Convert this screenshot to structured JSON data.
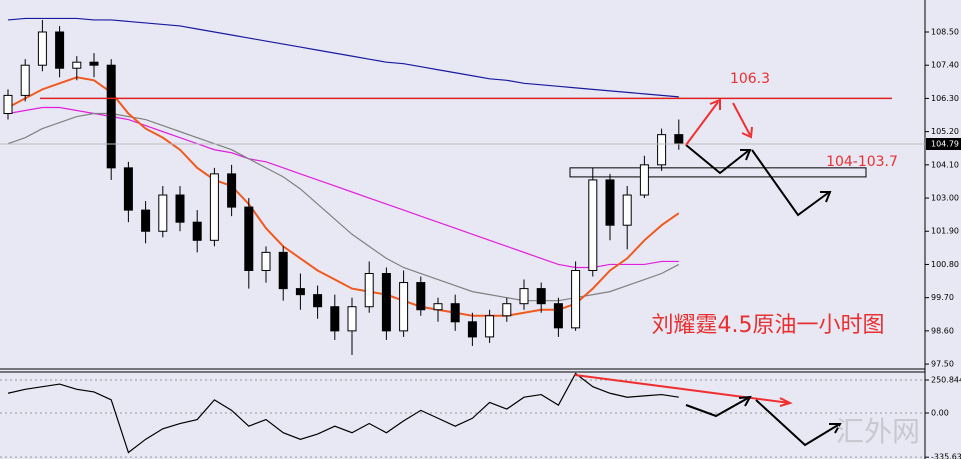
{
  "chart_data": [
    {
      "type": "candlestick",
      "title": "刘耀霆4.5原油一小时图",
      "watermark": "汇外网",
      "categories": [
        null,
        null,
        null,
        null,
        null,
        null,
        null,
        null,
        null,
        null,
        null,
        null,
        null,
        null,
        null,
        null,
        null,
        null,
        null,
        null,
        null,
        null,
        null,
        null,
        null,
        null,
        null,
        null,
        null,
        null,
        null,
        null,
        null,
        null,
        null,
        null,
        null,
        null,
        null,
        null
      ],
      "open": [
        105.8,
        106.4,
        107.4,
        108.5,
        107.3,
        107.5,
        107.4,
        104.0,
        102.6,
        101.9,
        103.1,
        102.2,
        101.6,
        103.8,
        102.7,
        100.6,
        101.2,
        100.0,
        99.8,
        99.4,
        98.6,
        99.4,
        100.5,
        98.6,
        100.2,
        99.3,
        99.5,
        98.9,
        98.4,
        99.1,
        99.5,
        100.0,
        99.5,
        98.7,
        100.6,
        103.6,
        102.1,
        103.1,
        104.1,
        105.1
      ],
      "high": [
        106.6,
        107.6,
        108.9,
        108.7,
        107.7,
        107.8,
        107.6,
        104.2,
        102.9,
        103.4,
        103.4,
        102.6,
        104.0,
        104.1,
        103.0,
        101.4,
        101.4,
        100.5,
        100.1,
        99.8,
        99.7,
        100.9,
        100.7,
        100.6,
        100.4,
        99.7,
        99.8,
        99.2,
        99.3,
        99.7,
        100.3,
        100.2,
        99.7,
        100.9,
        104.0,
        103.8,
        103.4,
        104.4,
        105.3,
        105.6
      ],
      "low": [
        105.6,
        106.2,
        107.2,
        107.0,
        106.9,
        107.0,
        103.6,
        102.2,
        101.5,
        101.7,
        101.9,
        101.2,
        101.4,
        102.4,
        100.0,
        100.2,
        99.6,
        99.3,
        99.0,
        98.3,
        97.8,
        99.2,
        98.3,
        98.4,
        99.1,
        98.9,
        98.6,
        98.1,
        98.2,
        98.9,
        99.3,
        99.2,
        98.4,
        98.6,
        100.4,
        101.6,
        101.3,
        103.0,
        103.9,
        104.6
      ],
      "close": [
        106.4,
        107.4,
        108.5,
        107.3,
        107.5,
        107.4,
        104.0,
        102.6,
        101.9,
        103.1,
        102.2,
        101.6,
        103.8,
        102.7,
        100.6,
        101.2,
        100.0,
        99.8,
        99.4,
        98.6,
        99.4,
        100.5,
        98.6,
        100.2,
        99.3,
        99.5,
        98.9,
        98.4,
        99.1,
        99.5,
        100.0,
        99.5,
        98.7,
        100.6,
        103.6,
        102.1,
        103.1,
        104.1,
        105.1,
        104.8
      ],
      "up_color": "#ffffff",
      "down_color": "#000000",
      "series": [
        {
          "color": "#1a1aa0",
          "values": [
            108.9,
            108.95,
            108.95,
            108.95,
            108.95,
            108.9,
            108.9,
            108.85,
            108.8,
            108.75,
            108.7,
            108.6,
            108.5,
            108.4,
            108.3,
            108.2,
            108.1,
            108.0,
            107.9,
            107.8,
            107.7,
            107.6,
            107.5,
            107.45,
            107.35,
            107.25,
            107.15,
            107.05,
            106.95,
            106.9,
            106.8,
            106.75,
            106.7,
            106.65,
            106.6,
            106.55,
            106.5,
            106.45,
            106.4,
            106.35
          ]
        },
        {
          "color": "#e020e0",
          "values": [
            105.8,
            105.9,
            106.0,
            106.0,
            105.9,
            105.8,
            105.7,
            105.6,
            105.4,
            105.2,
            105.0,
            104.8,
            104.6,
            104.5,
            104.3,
            104.2,
            104.0,
            103.8,
            103.6,
            103.4,
            103.2,
            103.0,
            102.8,
            102.6,
            102.4,
            102.2,
            102.0,
            101.8,
            101.6,
            101.4,
            101.2,
            101.0,
            100.8,
            100.7,
            100.7,
            100.8,
            100.8,
            100.8,
            100.9,
            100.9
          ]
        },
        {
          "color": "#808080",
          "values": [
            104.8,
            105.0,
            105.3,
            105.5,
            105.7,
            105.8,
            105.8,
            105.7,
            105.6,
            105.4,
            105.2,
            105.0,
            104.8,
            104.6,
            104.3,
            104.0,
            103.7,
            103.3,
            102.8,
            102.3,
            101.8,
            101.4,
            101.0,
            100.7,
            100.5,
            100.3,
            100.1,
            99.9,
            99.8,
            99.7,
            99.6,
            99.6,
            99.6,
            99.7,
            99.8,
            99.9,
            100.1,
            100.3,
            100.5,
            100.8
          ]
        },
        {
          "color": "#f05a1e",
          "values": [
            106.0,
            106.3,
            106.6,
            106.8,
            107.0,
            106.9,
            106.5,
            105.8,
            105.3,
            105.0,
            104.6,
            104.0,
            103.6,
            103.4,
            102.8,
            102.0,
            101.4,
            101.0,
            100.6,
            100.3,
            100.0,
            99.9,
            99.8,
            99.6,
            99.4,
            99.3,
            99.2,
            99.1,
            99.1,
            99.1,
            99.2,
            99.3,
            99.3,
            99.5,
            100.0,
            100.6,
            101.0,
            101.6,
            102.1,
            102.5
          ]
        }
      ],
      "ylim": [
        97.37,
        109.56
      ],
      "yticks": [
        {
          "value": 108.5,
          "label": "108.50"
        },
        {
          "value": 107.4,
          "label": "107.40"
        },
        {
          "value": 106.3,
          "label": "106.30"
        },
        {
          "value": 105.2,
          "label": "105.20"
        },
        {
          "value": 104.1,
          "label": "104.10"
        },
        {
          "value": 103.0,
          "label": "103.00"
        },
        {
          "value": 101.9,
          "label": "101.90"
        },
        {
          "value": 100.8,
          "label": "100.80"
        },
        {
          "value": 99.7,
          "label": "99.70"
        },
        {
          "value": 98.6,
          "label": "98.60"
        },
        {
          "value": 97.5,
          "label": "97.50"
        }
      ],
      "last_price": {
        "value": 104.79,
        "label": "104.79"
      },
      "resistance": 106.3,
      "resistance_color": "#e02020",
      "support_zone": {
        "label": "104-103.7",
        "range": [
          104,
          103.7
        ]
      }
    },
    {
      "type": "line",
      "series": [
        {
          "color": "#000000",
          "values": [
            150,
            180,
            200,
            220,
            180,
            160,
            100,
            -300,
            -200,
            -120,
            -80,
            -50,
            100,
            20,
            -100,
            -50,
            -150,
            -200,
            -160,
            -100,
            -150,
            -80,
            -150,
            -60,
            20,
            -40,
            -100,
            -40,
            80,
            30,
            120,
            140,
            60,
            300,
            200,
            150,
            120,
            130,
            140,
            120
          ]
        }
      ],
      "ylim": [
        -349.6,
        311.6
      ],
      "yticks": [
        {
          "value": 250.844,
          "label": "250.844"
        },
        {
          "value": 0,
          "label": "0.00"
        },
        -335.63
      ]
    }
  ]
}
